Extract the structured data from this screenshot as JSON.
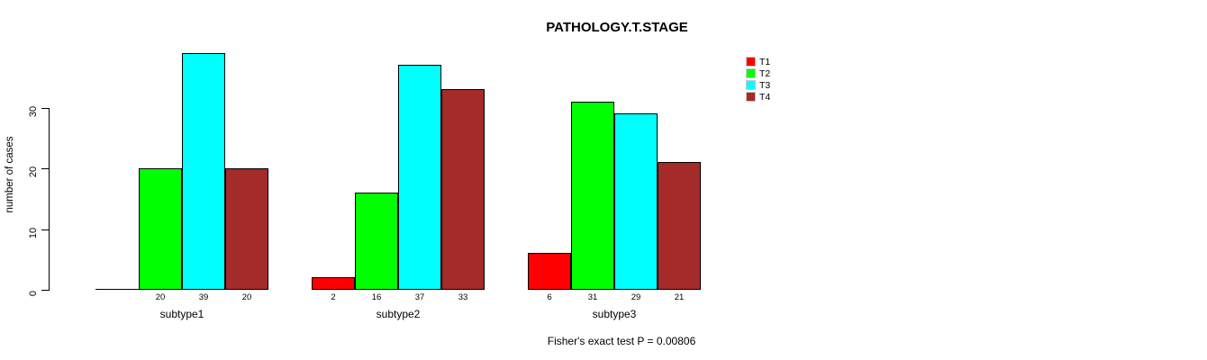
{
  "chart_data": {
    "type": "bar",
    "title": "PATHOLOGY.T.STAGE",
    "ylabel": "number of cases",
    "xlabel": "",
    "note": "Fisher's exact test P = 0.00806",
    "categories": [
      "subtype1",
      "subtype2",
      "subtype3"
    ],
    "series": [
      {
        "name": "T1",
        "color": "#ff0000",
        "values": [
          0,
          2,
          6
        ]
      },
      {
        "name": "T2",
        "color": "#00ff00",
        "values": [
          20,
          16,
          31
        ]
      },
      {
        "name": "T3",
        "color": "#00ffff",
        "values": [
          39,
          37,
          29
        ]
      },
      {
        "name": "T4",
        "color": "#a52a2a",
        "values": [
          20,
          33,
          21
        ]
      }
    ],
    "value_labels": [
      [
        "",
        "2",
        "6"
      ],
      [
        "20",
        "16",
        "31"
      ],
      [
        "39",
        "37",
        "29"
      ],
      [
        "20",
        "33",
        "21"
      ]
    ],
    "yticks": [
      "0",
      "10",
      "20",
      "30"
    ],
    "ylim": [
      0,
      39
    ],
    "grid": false,
    "legend_position": "right",
    "legend_entries": [
      "T1",
      "T2",
      "T3",
      "T4"
    ]
  }
}
